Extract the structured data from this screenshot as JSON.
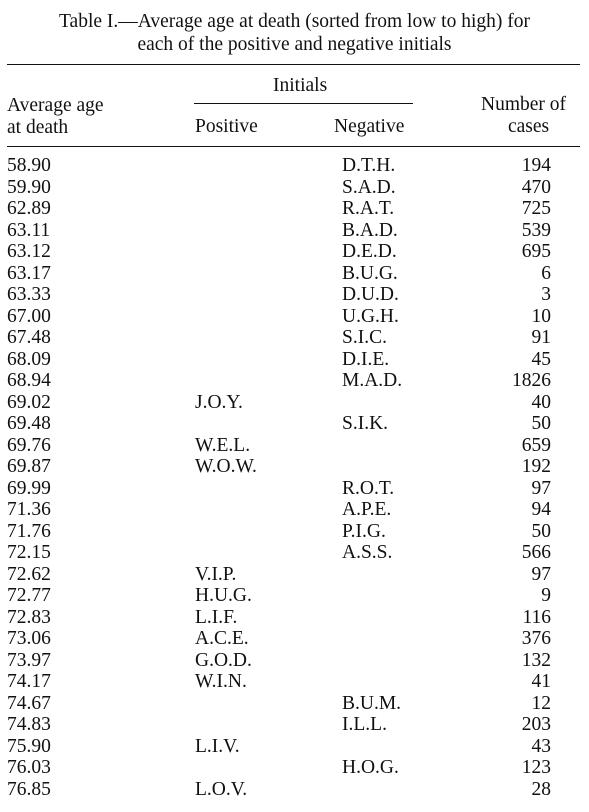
{
  "table": {
    "caption_line1": "Table I.—Average age at death (sorted from low to high) for",
    "caption_line2": "each of the positive and negative initials",
    "headers": {
      "age_line1": "Average age",
      "age_line2": "at death",
      "initials": "Initials",
      "positive": "Positive",
      "negative": "Negative",
      "cases_line1": "Number of",
      "cases_line2": "cases"
    },
    "rows": [
      {
        "age": "58.90",
        "positive": "",
        "negative": "D.T.H.",
        "cases": "194"
      },
      {
        "age": "59.90",
        "positive": "",
        "negative": "S.A.D.",
        "cases": "470"
      },
      {
        "age": "62.89",
        "positive": "",
        "negative": "R.A.T.",
        "cases": "725"
      },
      {
        "age": "63.11",
        "positive": "",
        "negative": "B.A.D.",
        "cases": "539"
      },
      {
        "age": "63.12",
        "positive": "",
        "negative": "D.E.D.",
        "cases": "695"
      },
      {
        "age": "63.17",
        "positive": "",
        "negative": "B.U.G.",
        "cases": "6"
      },
      {
        "age": "63.33",
        "positive": "",
        "negative": "D.U.D.",
        "cases": "3"
      },
      {
        "age": "67.00",
        "positive": "",
        "negative": "U.G.H.",
        "cases": "10"
      },
      {
        "age": "67.48",
        "positive": "",
        "negative": "S.I.C.",
        "cases": "91"
      },
      {
        "age": "68.09",
        "positive": "",
        "negative": "D.I.E.",
        "cases": "45"
      },
      {
        "age": "68.94",
        "positive": "",
        "negative": "M.A.D.",
        "cases": "1826"
      },
      {
        "age": "69.02",
        "positive": "J.O.Y.",
        "negative": "",
        "cases": "40"
      },
      {
        "age": "69.48",
        "positive": "",
        "negative": "S.I.K.",
        "cases": "50"
      },
      {
        "age": "69.76",
        "positive": "W.E.L.",
        "negative": "",
        "cases": "659"
      },
      {
        "age": "69.87",
        "positive": "W.O.W.",
        "negative": "",
        "cases": "192"
      },
      {
        "age": "69.99",
        "positive": "",
        "negative": "R.O.T.",
        "cases": "97"
      },
      {
        "age": "71.36",
        "positive": "",
        "negative": "A.P.E.",
        "cases": "94"
      },
      {
        "age": "71.76",
        "positive": "",
        "negative": "P.I.G.",
        "cases": "50"
      },
      {
        "age": "72.15",
        "positive": "",
        "negative": "A.S.S.",
        "cases": "566"
      },
      {
        "age": "72.62",
        "positive": "V.I.P.",
        "negative": "",
        "cases": "97"
      },
      {
        "age": "72.77",
        "positive": "H.U.G.",
        "negative": "",
        "cases": "9"
      },
      {
        "age": "72.83",
        "positive": "L.I.F.",
        "negative": "",
        "cases": "116"
      },
      {
        "age": "73.06",
        "positive": "A.C.E.",
        "negative": "",
        "cases": "376"
      },
      {
        "age": "73.97",
        "positive": "G.O.D.",
        "negative": "",
        "cases": "132"
      },
      {
        "age": "74.17",
        "positive": "W.I.N.",
        "negative": "",
        "cases": "41"
      },
      {
        "age": "74.67",
        "positive": "",
        "negative": "B.U.M.",
        "cases": "12"
      },
      {
        "age": "74.83",
        "positive": "",
        "negative": "I.L.L.",
        "cases": "203"
      },
      {
        "age": "75.90",
        "positive": "L.I.V.",
        "negative": "",
        "cases": "43"
      },
      {
        "age": "76.03",
        "positive": "",
        "negative": "H.O.G.",
        "cases": "123"
      },
      {
        "age": "76.85",
        "positive": "L.O.V.",
        "negative": "",
        "cases": "28"
      }
    ]
  }
}
